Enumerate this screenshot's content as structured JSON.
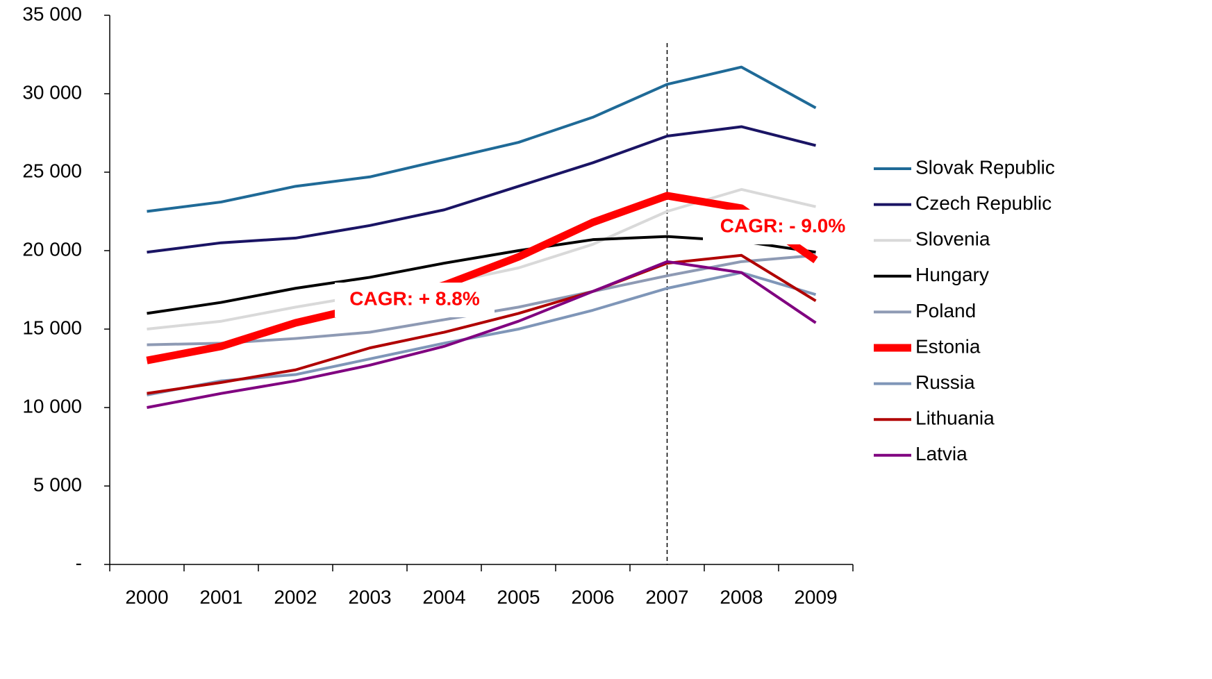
{
  "chart_data": {
    "type": "line",
    "categories": [
      "2000",
      "2001",
      "2002",
      "2003",
      "2004",
      "2005",
      "2006",
      "2007",
      "2008",
      "2009"
    ],
    "ylim": [
      0,
      35000
    ],
    "yticks": [
      {
        "value": 0,
        "label": "-"
      },
      {
        "value": 5000,
        "label": "5 000"
      },
      {
        "value": 10000,
        "label": "10 000"
      },
      {
        "value": 15000,
        "label": "15 000"
      },
      {
        "value": 20000,
        "label": "20 000"
      },
      {
        "value": 25000,
        "label": "25 000"
      },
      {
        "value": 30000,
        "label": "30 000"
      },
      {
        "value": 35000,
        "label": "35 000"
      }
    ],
    "grid": false,
    "legend": "right",
    "annotations": [
      "CAGR: + 8.8%",
      "CAGR: - 9.0%"
    ],
    "series": [
      {
        "name": "Slovak Republic",
        "color": "#1f6a97",
        "width": 4,
        "values": [
          22500,
          23100,
          24100,
          24700,
          25800,
          26900,
          28500,
          30600,
          31700,
          29100
        ]
      },
      {
        "name": "Czech Republic",
        "color": "#1a1464",
        "width": 4,
        "values": [
          19900,
          20500,
          20800,
          21600,
          22600,
          24100,
          25600,
          27300,
          27900,
          26700
        ]
      },
      {
        "name": "Slovenia",
        "color": "#d9d9d9",
        "width": 4,
        "values": [
          15000,
          15500,
          16400,
          17200,
          17900,
          18900,
          20400,
          22500,
          23900,
          22800
        ]
      },
      {
        "name": "Hungary",
        "color": "#000000",
        "width": 4,
        "values": [
          16000,
          16700,
          17600,
          18300,
          19200,
          20000,
          20700,
          20900,
          20600,
          19900
        ]
      },
      {
        "name": "Poland",
        "color": "#8e9ab4",
        "width": 4,
        "values": [
          14000,
          14100,
          14400,
          14800,
          15600,
          16400,
          17400,
          18400,
          19300,
          19700
        ]
      },
      {
        "name": "Estonia",
        "color": "#ff0000",
        "width": 11,
        "values": [
          13000,
          13900,
          15400,
          16500,
          17800,
          19600,
          21800,
          23500,
          22700,
          19400
        ]
      },
      {
        "name": "Russia",
        "color": "#7f96b8",
        "width": 4,
        "values": [
          10800,
          11700,
          12100,
          13100,
          14100,
          15000,
          16200,
          17600,
          18600,
          17200
        ]
      },
      {
        "name": "Lithuania",
        "color": "#b00000",
        "width": 4,
        "values": [
          10900,
          11600,
          12400,
          13800,
          14800,
          16000,
          17400,
          19200,
          19700,
          16800
        ]
      },
      {
        "name": "Latvia",
        "color": "#800080",
        "width": 4,
        "values": [
          10000,
          10900,
          11700,
          12700,
          13900,
          15500,
          17400,
          19300,
          18600,
          15400
        ]
      }
    ]
  }
}
